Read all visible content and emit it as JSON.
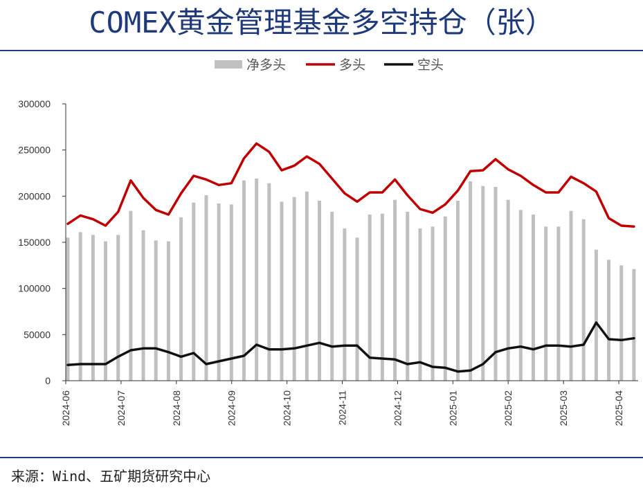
{
  "title": "COMEX黄金管理基金多空持仓（张）",
  "source": "来源：Wind、五矿期货研究中心",
  "chart_data": {
    "type": "bar",
    "title": "COMEX黄金管理基金多空持仓（张）",
    "ylim": [
      0,
      300000
    ],
    "yticks": [
      "300000",
      "250000",
      "200000",
      "150000",
      "100000",
      "50000",
      "0"
    ],
    "x_tick_labels": [
      "2024-06",
      "2024-07",
      "2024-08",
      "2024-09",
      "2024-10",
      "2024-11",
      "2024-12",
      "2025-01",
      "2025-02",
      "2025-03",
      "2025-04"
    ],
    "legend_position": "top",
    "series": [
      {
        "name": "净多头",
        "type": "bar",
        "color": "#c0c0c0",
        "values": [
          155000,
          161000,
          158000,
          151000,
          158000,
          184000,
          163000,
          152000,
          151000,
          177000,
          193000,
          201000,
          192000,
          191000,
          217000,
          219000,
          214000,
          194000,
          199000,
          205000,
          195000,
          183000,
          165000,
          155000,
          180000,
          181000,
          196000,
          183000,
          165000,
          167000,
          178000,
          195000,
          216000,
          211000,
          210000,
          196000,
          185000,
          180000,
          167000,
          167000,
          184000,
          175000,
          142000,
          131000,
          125000,
          121000
        ]
      },
      {
        "name": "多头",
        "type": "line",
        "color": "#c00000",
        "values": [
          170000,
          179000,
          175000,
          168000,
          183000,
          217000,
          198000,
          185000,
          180000,
          203000,
          222000,
          218000,
          212000,
          214000,
          241000,
          257000,
          248000,
          228000,
          233000,
          243000,
          235000,
          219000,
          203000,
          194000,
          204000,
          204000,
          218000,
          201000,
          186000,
          182000,
          191000,
          206000,
          227000,
          228000,
          240000,
          229000,
          222000,
          212000,
          204000,
          204000,
          221000,
          214000,
          205000,
          176000,
          168000,
          167000
        ]
      },
      {
        "name": "空头",
        "type": "line",
        "color": "#111111",
        "values": [
          17000,
          18000,
          18000,
          18000,
          26000,
          33000,
          35000,
          35000,
          31000,
          26000,
          30000,
          18000,
          21000,
          24000,
          27000,
          39000,
          34000,
          34000,
          35000,
          38000,
          41000,
          37000,
          38000,
          38000,
          25000,
          24000,
          23000,
          18000,
          20000,
          15000,
          14000,
          10000,
          11000,
          18000,
          31000,
          35000,
          37000,
          34000,
          38000,
          38000,
          37000,
          39000,
          63000,
          45000,
          44000,
          46000
        ]
      }
    ]
  },
  "colors": {
    "title": "#1f3a7a",
    "rule": "#1f3a7a",
    "bar": "#c0c0c0",
    "long": "#c00000",
    "short": "#111111"
  }
}
